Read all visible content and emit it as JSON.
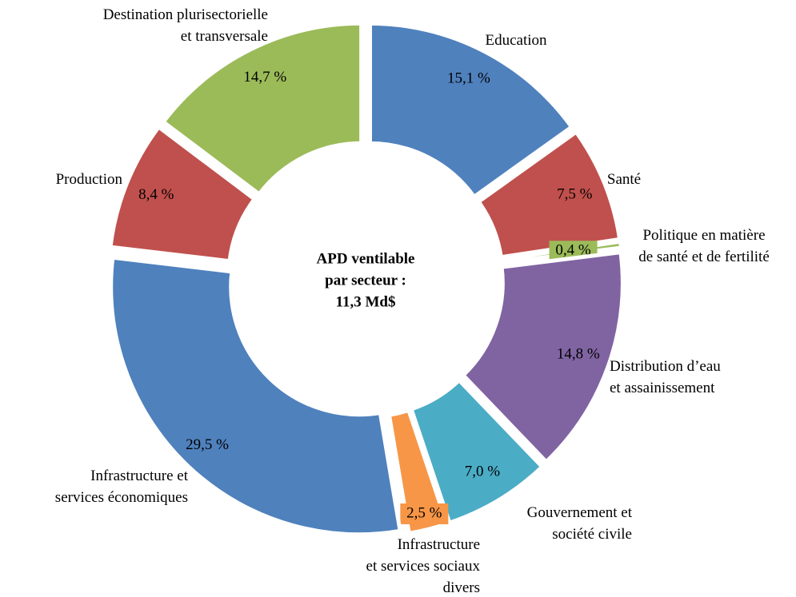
{
  "chart_data": {
    "type": "donut",
    "categories": [
      "Education",
      "Santé",
      "Politique en matière\nde santé et de fertilité",
      "Distribution  d’eau\net assainissement",
      "Gouvernement et\nsociété civile",
      "Infrastructure\net services sociaux\ndivers",
      "Infrastructure et\nservices économiques",
      "Production",
      "Destination plurisectorielle\net transversale"
    ],
    "values": [
      15.1,
      7.5,
      0.4,
      14.8,
      7.0,
      2.5,
      29.5,
      8.4,
      14.7
    ],
    "value_labels": [
      "15,1 %",
      "7,5 %",
      "0,4 %",
      "14,8 %",
      "7,0 %",
      "2,5 %",
      "29,5 %",
      "8,4 %",
      "14,7 %"
    ],
    "colors": [
      "#4f81bd",
      "#c0504d",
      "#9bbb59",
      "#8064a2",
      "#4bacc6",
      "#f79646",
      "#4f81bd",
      "#c0504d",
      "#9bbb59"
    ],
    "center_text": [
      "APD ventilable",
      "par secteur :",
      "11,3 Md$"
    ]
  }
}
